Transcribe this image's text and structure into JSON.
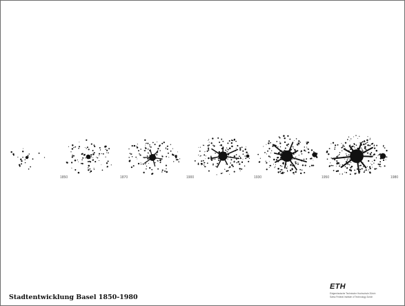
{
  "slide": {
    "caption": "Stadtentwicklung Basel 1850-1980",
    "logo": {
      "wordmark": "ETH",
      "subtitle_de": "Eidgenössische Technische Hochschule Zürich",
      "subtitle_en": "Swiss Federal Institute of Technology Zurich"
    }
  },
  "maps": {
    "labels": [
      "1850",
      "1870",
      "1900",
      "1930",
      "1950",
      "1980"
    ],
    "ink_color": "#111111",
    "label_color": "#555555"
  }
}
